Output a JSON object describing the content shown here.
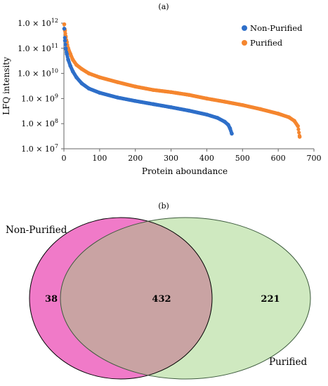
{
  "panel_a_label": "(a)",
  "panel_b_label": "(b)",
  "colors": {
    "non_purified": "#2e6fc9",
    "purified": "#f5862f",
    "venn_non_purified": "#f07ac8",
    "venn_purified": "#cfe9c0",
    "venn_overlap": "#c9a3a3"
  },
  "chart_data": [
    {
      "type": "scatter",
      "title": "",
      "xlabel": "Protein aboundance",
      "ylabel": "LFQ intensity",
      "xlim": [
        0,
        700
      ],
      "ylim": [
        10000000,
        1000000000000
      ],
      "y_scale": "log",
      "x_ticks": [
        "0",
        "100",
        "200",
        "300",
        "400",
        "500",
        "600",
        "700"
      ],
      "y_ticks": [
        {
          "base": "1.0 × 10",
          "exp": "12"
        },
        {
          "base": "1.0 × 10",
          "exp": "11"
        },
        {
          "base": "1.0 × 10",
          "exp": "10"
        },
        {
          "base": "1.0 × 10",
          "exp": "9"
        },
        {
          "base": "1.0 × 10",
          "exp": "8"
        },
        {
          "base": "1.0 × 10",
          "exp": "7"
        }
      ],
      "legend_position": "top-right",
      "grid": false,
      "series": [
        {
          "name": "Non-Purified",
          "color": "#2e6fc9",
          "x": [
            1,
            3,
            5,
            8,
            12,
            18,
            25,
            35,
            50,
            70,
            100,
            150,
            200,
            250,
            300,
            350,
            400,
            430,
            450,
            460,
            465,
            470
          ],
          "y": [
            600000000000,
            200000000000,
            100000000000,
            60000000000,
            35000000000,
            20000000000,
            12000000000,
            7000000000,
            4000000000,
            2500000000,
            1700000000,
            1100000000,
            800000000,
            600000000,
            450000000,
            330000000,
            230000000,
            170000000,
            120000000,
            90000000,
            65000000,
            40000000
          ]
        },
        {
          "name": "Purified",
          "color": "#f5862f",
          "x": [
            1,
            3,
            5,
            8,
            12,
            18,
            25,
            35,
            50,
            70,
            100,
            150,
            200,
            250,
            300,
            350,
            400,
            450,
            500,
            550,
            600,
            630,
            645,
            655,
            660
          ],
          "y": [
            900000000000,
            500000000000,
            300000000000,
            180000000000,
            100000000000,
            60000000000,
            35000000000,
            22000000000,
            15000000000,
            10000000000,
            7000000000,
            4500000000,
            3000000000,
            2200000000,
            1800000000,
            1400000000,
            1000000000,
            750000000,
            550000000,
            380000000,
            250000000,
            180000000,
            130000000,
            80000000,
            30000000
          ]
        }
      ]
    },
    {
      "type": "venn",
      "sets": [
        {
          "name": "Non-Purified",
          "only_count": "38"
        },
        {
          "name": "Purified",
          "only_count": "221"
        }
      ],
      "intersection_count": "432"
    }
  ]
}
